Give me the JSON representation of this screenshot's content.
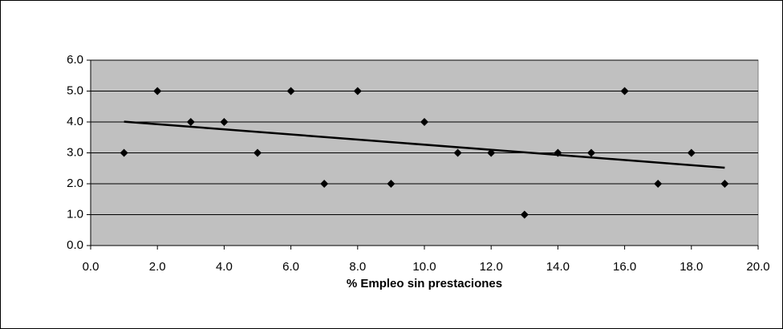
{
  "chart_data": {
    "type": "scatter",
    "x_label": "% Empleo sin prestaciones",
    "x": [
      1,
      2,
      3,
      4,
      5,
      6,
      7,
      8,
      9,
      10,
      11,
      12,
      13,
      14,
      15,
      16,
      17,
      18,
      19
    ],
    "values": [
      3,
      5,
      4,
      4,
      3,
      5,
      2,
      5,
      2,
      4,
      3,
      3,
      1,
      3,
      3,
      5,
      2,
      3,
      2
    ],
    "color": "#000000",
    "plot_background": "#c0c0c0",
    "trendline": {
      "x": [
        1,
        19
      ],
      "values": [
        4.01,
        2.52
      ],
      "color": "#000000"
    },
    "xlim": [
      0,
      20
    ],
    "xticks": [
      {
        "value": 0,
        "label": "0.0"
      },
      {
        "value": 2,
        "label": "2.0"
      },
      {
        "value": 4,
        "label": "4.0"
      },
      {
        "value": 6,
        "label": "6.0"
      },
      {
        "value": 8,
        "label": "8.0"
      },
      {
        "value": 10,
        "label": "10.0"
      },
      {
        "value": 12,
        "label": "12.0"
      },
      {
        "value": 14,
        "label": "14.0"
      },
      {
        "value": 16,
        "label": "16.0"
      },
      {
        "value": 18,
        "label": "18.0"
      },
      {
        "value": 20,
        "label": "20.0"
      }
    ],
    "ylim": [
      0,
      6
    ],
    "yticks": [
      {
        "value": 0,
        "label": "0.0"
      },
      {
        "value": 1,
        "label": "1.0"
      },
      {
        "value": 2,
        "label": "2.0"
      },
      {
        "value": 3,
        "label": "3.0"
      },
      {
        "value": 4,
        "label": "4.0"
      },
      {
        "value": 5,
        "label": "5.0"
      },
      {
        "value": 6,
        "label": "6.0"
      }
    ],
    "grid": true
  }
}
